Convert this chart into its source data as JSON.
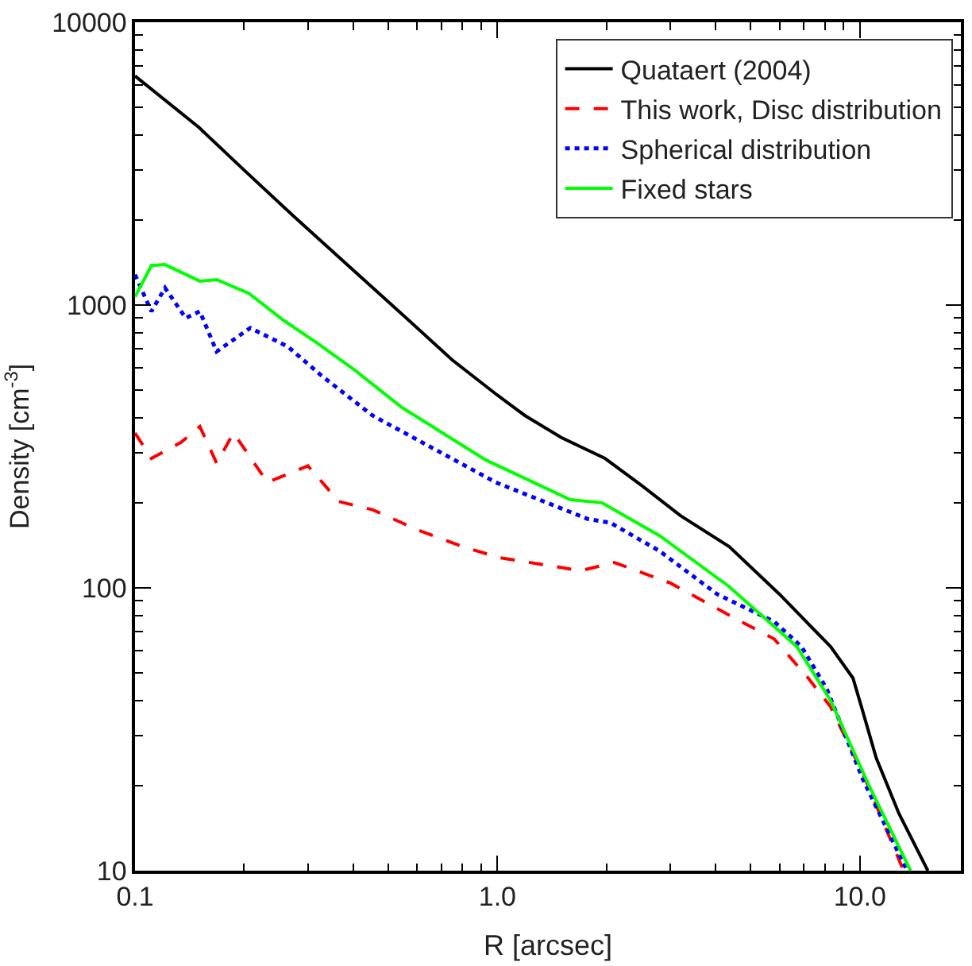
{
  "chart_data": {
    "type": "line",
    "xlabel": "R [arcsec]",
    "ylabel": "Density [cm$^{-3}$]",
    "log": "xy",
    "legend": "top right",
    "xlim": [
      0.1,
      19
    ],
    "xticks": [
      0.1,
      {
        "value": 1,
        "label": "1.0"
      },
      {
        "value": 10,
        "label": "10.0"
      }
    ],
    "ylim": [
      10,
      10000
    ],
    "yticks": [
      10,
      100,
      1000,
      10000
    ],
    "series": [
      {
        "name": "Quataert (2004)",
        "color": "#000000",
        "line_style": "solid",
        "x": [
          0.1,
          0.15,
          0.2,
          0.273,
          0.4,
          0.55,
          0.75,
          1.0,
          1.19,
          1.5,
          1.98,
          2.5,
          3.2,
          4.36,
          6.0,
          8.3,
          9.57,
          10.1,
          11.1,
          12.8,
          15.4
        ],
        "values": [
          6460,
          4250,
          3000,
          2070,
          1330,
          920,
          640,
          480,
          407,
          340,
          287,
          230,
          180,
          140,
          95,
          62,
          48,
          38,
          25,
          16,
          10
        ]
      },
      {
        "name": "This work, Disc distribution",
        "color": "#ff0000",
        "line_style": "dashed",
        "x": [
          0.1,
          0.111,
          0.134,
          0.151,
          0.168,
          0.187,
          0.232,
          0.3,
          0.365,
          0.452,
          0.605,
          0.8,
          1.01,
          1.7,
          2.1,
          3.0,
          4.7,
          5.8,
          7.2,
          8.3,
          10.2,
          13.2
        ],
        "values": [
          353,
          287,
          327,
          372,
          276,
          353,
          236,
          270,
          202,
          189,
          160,
          140,
          128,
          115,
          123,
          104,
          76,
          66,
          48,
          38,
          22,
          10
        ]
      },
      {
        "name": "Spherical distribution",
        "color": "#0000ff",
        "line_style": "dotted",
        "x": [
          0.1,
          0.111,
          0.121,
          0.138,
          0.151,
          0.168,
          0.208,
          0.264,
          0.327,
          0.452,
          0.99,
          1.78,
          2.05,
          2.8,
          4.04,
          5.8,
          6.9,
          8.1,
          10.2,
          13.5
        ],
        "values": [
          1280,
          950,
          1150,
          900,
          950,
          685,
          830,
          713,
          563,
          407,
          236,
          175,
          170,
          135,
          95,
          76,
          62,
          44,
          21,
          10
        ]
      },
      {
        "name": "Fixed stars",
        "color": "#00ff00",
        "line_style": "solid",
        "x": [
          0.1,
          0.111,
          0.121,
          0.151,
          0.168,
          0.206,
          0.258,
          0.32,
          0.406,
          0.544,
          0.93,
          1.59,
          1.94,
          2.8,
          4.36,
          6.7,
          8.3,
          10.6,
          13.8
        ],
        "values": [
          1070,
          1380,
          1390,
          1215,
          1230,
          1100,
          880,
          730,
          586,
          435,
          283,
          205,
          200,
          153,
          101,
          62,
          40,
          20,
          10
        ]
      }
    ]
  }
}
